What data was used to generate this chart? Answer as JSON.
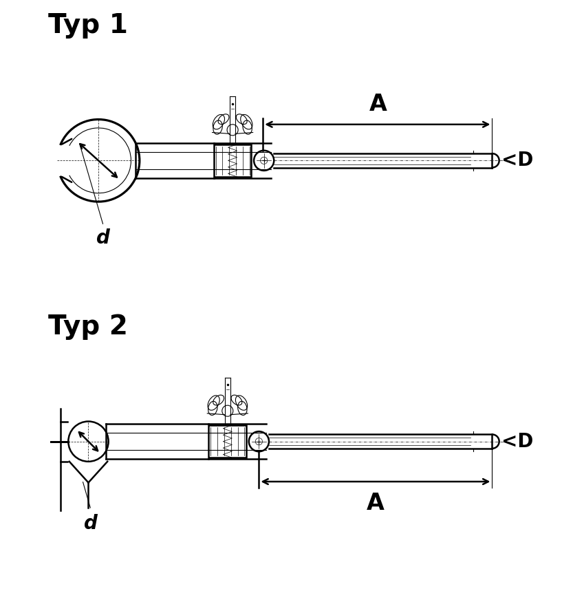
{
  "title1": "Typ 1",
  "title2": "Typ 2",
  "label_d": "d",
  "label_A": "A",
  "label_D": "<D",
  "bg_color": "#ffffff",
  "line_color": "#000000",
  "lw_main": 1.8,
  "lw_thin": 0.8,
  "lw_extra_thin": 0.5,
  "title_fontsize": 28,
  "dim_fontsize": 20,
  "label_fontsize": 18,
  "figsize": [
    8.33,
    8.75
  ],
  "dpi": 100
}
